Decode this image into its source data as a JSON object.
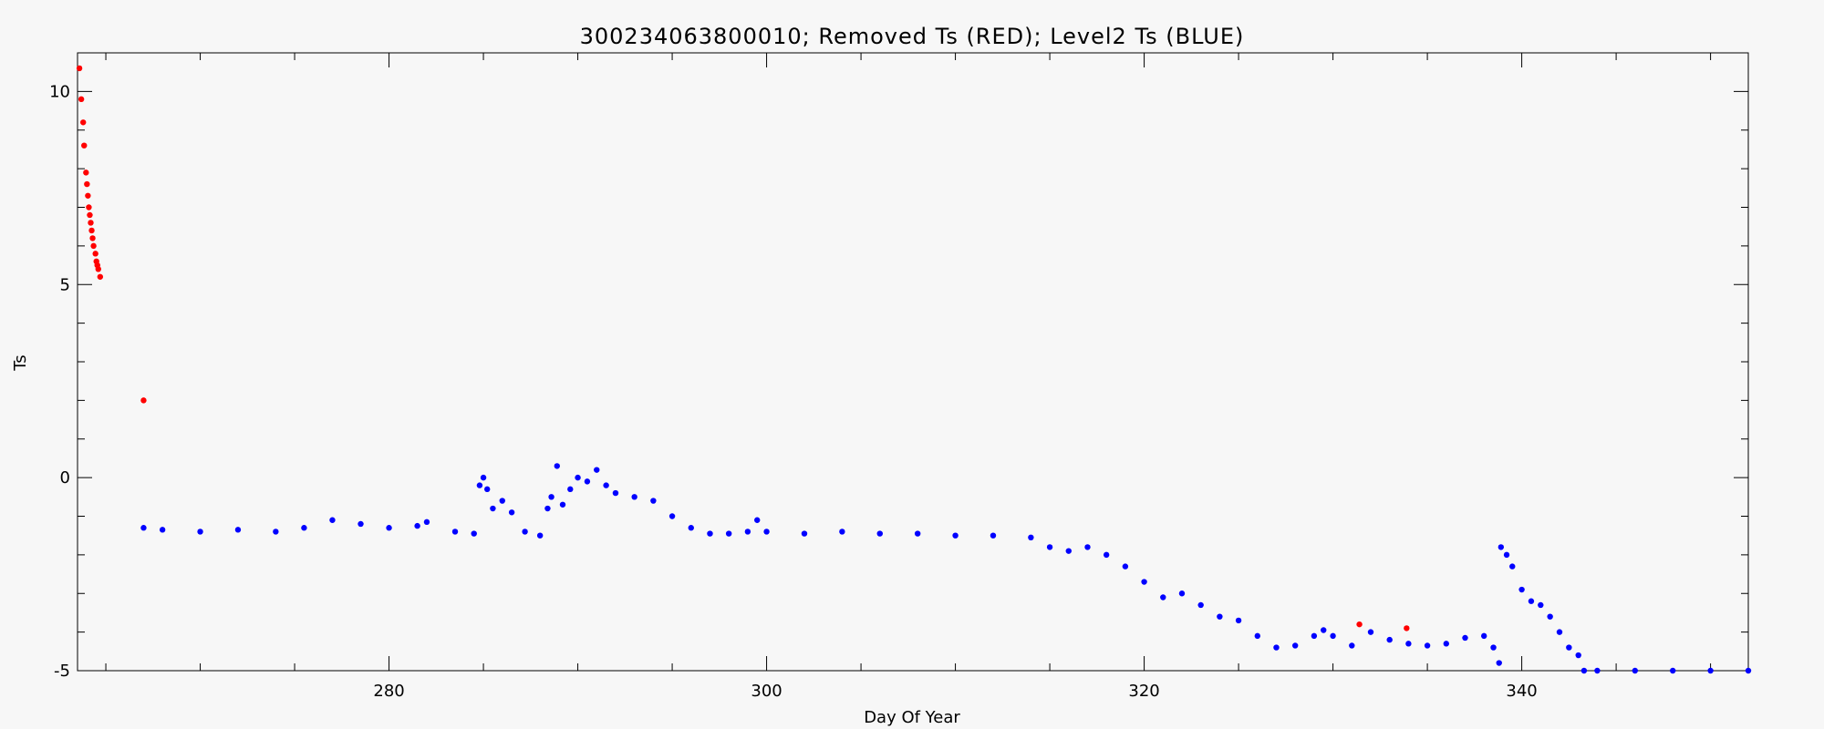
{
  "chart_data": {
    "type": "scatter",
    "title": "300234063800010; Removed Ts (RED); Level2 Ts (BLUE)",
    "xlabel": "Day Of Year",
    "ylabel": "Ts",
    "xlim": [
      263.5,
      352
    ],
    "ylim": [
      -5,
      11
    ],
    "xticks": [
      280,
      300,
      320,
      340
    ],
    "yticks": [
      -5,
      0,
      5,
      10
    ],
    "xticklabels": [
      "280",
      "300",
      "320",
      "340"
    ],
    "yticklabels": [
      "-5",
      "0",
      "5",
      "10"
    ],
    "grid": false,
    "series": [
      {
        "color": "#ff0000",
        "points": [
          [
            263.6,
            10.6
          ],
          [
            263.7,
            9.8
          ],
          [
            263.8,
            9.2
          ],
          [
            263.85,
            8.6
          ],
          [
            263.95,
            7.9
          ],
          [
            264.0,
            7.6
          ],
          [
            264.05,
            7.3
          ],
          [
            264.1,
            7.0
          ],
          [
            264.15,
            6.8
          ],
          [
            264.2,
            6.6
          ],
          [
            264.25,
            6.4
          ],
          [
            264.3,
            6.2
          ],
          [
            264.35,
            6.0
          ],
          [
            264.45,
            5.8
          ],
          [
            264.5,
            5.6
          ],
          [
            264.55,
            5.5
          ],
          [
            264.6,
            5.4
          ],
          [
            264.7,
            5.2
          ],
          [
            267.0,
            2.0
          ],
          [
            331.4,
            -3.8
          ],
          [
            333.9,
            -3.9
          ]
        ]
      },
      {
        "color": "#0000ff",
        "points": [
          [
            267.0,
            -1.3
          ],
          [
            268.0,
            -1.35
          ],
          [
            270.0,
            -1.4
          ],
          [
            272.0,
            -1.35
          ],
          [
            274.0,
            -1.4
          ],
          [
            275.5,
            -1.3
          ],
          [
            277.0,
            -1.1
          ],
          [
            278.5,
            -1.2
          ],
          [
            280.0,
            -1.3
          ],
          [
            281.5,
            -1.25
          ],
          [
            282.0,
            -1.15
          ],
          [
            283.5,
            -1.4
          ],
          [
            284.5,
            -1.45
          ],
          [
            284.8,
            -0.2
          ],
          [
            285.0,
            0.0
          ],
          [
            285.2,
            -0.3
          ],
          [
            285.5,
            -0.8
          ],
          [
            286.0,
            -0.6
          ],
          [
            286.5,
            -0.9
          ],
          [
            287.2,
            -1.4
          ],
          [
            288.0,
            -1.5
          ],
          [
            288.4,
            -0.8
          ],
          [
            288.6,
            -0.5
          ],
          [
            288.9,
            0.3
          ],
          [
            289.2,
            -0.7
          ],
          [
            289.6,
            -0.3
          ],
          [
            290.0,
            0.0
          ],
          [
            290.5,
            -0.1
          ],
          [
            291.0,
            0.2
          ],
          [
            291.5,
            -0.2
          ],
          [
            292.0,
            -0.4
          ],
          [
            293.0,
            -0.5
          ],
          [
            294.0,
            -0.6
          ],
          [
            295.0,
            -1.0
          ],
          [
            296.0,
            -1.3
          ],
          [
            297.0,
            -1.45
          ],
          [
            298.0,
            -1.45
          ],
          [
            299.0,
            -1.4
          ],
          [
            299.5,
            -1.1
          ],
          [
            300.0,
            -1.4
          ],
          [
            302.0,
            -1.45
          ],
          [
            304.0,
            -1.4
          ],
          [
            306.0,
            -1.45
          ],
          [
            308.0,
            -1.45
          ],
          [
            310.0,
            -1.5
          ],
          [
            312.0,
            -1.5
          ],
          [
            314.0,
            -1.55
          ],
          [
            315.0,
            -1.8
          ],
          [
            316.0,
            -1.9
          ],
          [
            317.0,
            -1.8
          ],
          [
            318.0,
            -2.0
          ],
          [
            319.0,
            -2.3
          ],
          [
            320.0,
            -2.7
          ],
          [
            321.0,
            -3.1
          ],
          [
            322.0,
            -3.0
          ],
          [
            323.0,
            -3.3
          ],
          [
            324.0,
            -3.6
          ],
          [
            325.0,
            -3.7
          ],
          [
            326.0,
            -4.1
          ],
          [
            327.0,
            -4.4
          ],
          [
            328.0,
            -4.35
          ],
          [
            329.0,
            -4.1
          ],
          [
            329.5,
            -3.95
          ],
          [
            330.0,
            -4.1
          ],
          [
            331.0,
            -4.35
          ],
          [
            332.0,
            -4.0
          ],
          [
            333.0,
            -4.2
          ],
          [
            334.0,
            -4.3
          ],
          [
            335.0,
            -4.35
          ],
          [
            336.0,
            -4.3
          ],
          [
            337.0,
            -4.15
          ],
          [
            338.0,
            -4.1
          ],
          [
            338.5,
            -4.4
          ],
          [
            338.8,
            -4.8
          ],
          [
            338.9,
            -1.8
          ],
          [
            339.2,
            -2.0
          ],
          [
            339.5,
            -2.3
          ],
          [
            340.0,
            -2.9
          ],
          [
            340.5,
            -3.2
          ],
          [
            341.0,
            -3.3
          ],
          [
            341.5,
            -3.6
          ],
          [
            342.0,
            -4.0
          ],
          [
            342.5,
            -4.4
          ],
          [
            343.0,
            -4.6
          ],
          [
            343.3,
            -5.0
          ],
          [
            344.0,
            -5.0
          ],
          [
            346.0,
            -5.0
          ],
          [
            348.0,
            -5.0
          ],
          [
            350.0,
            -5.0
          ],
          [
            352.0,
            -5.0
          ]
        ]
      }
    ]
  }
}
